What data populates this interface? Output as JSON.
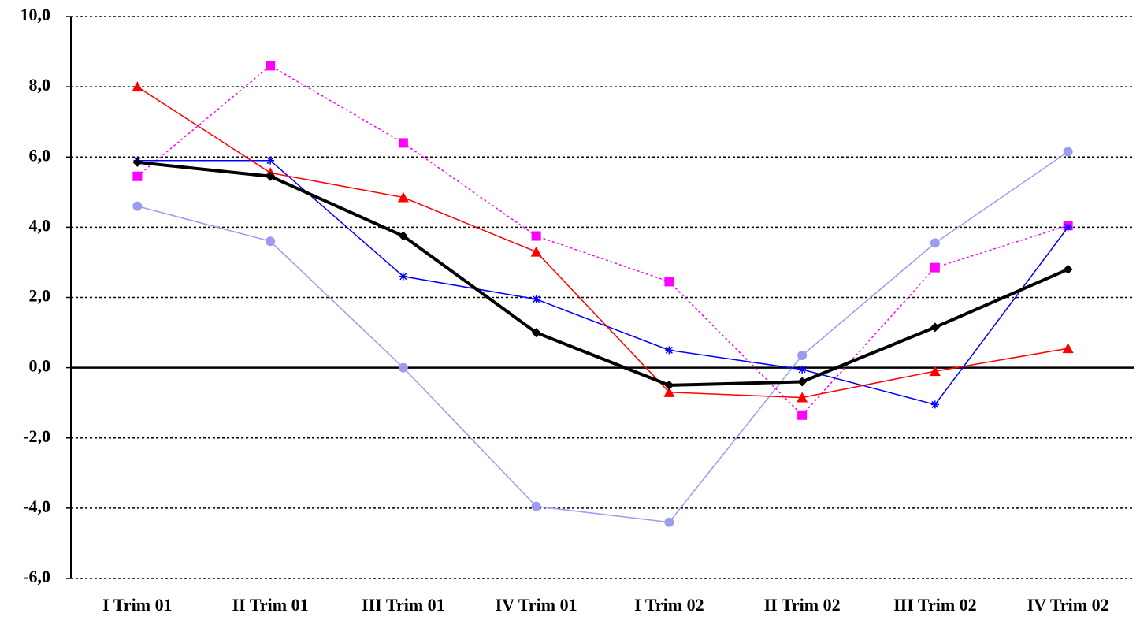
{
  "chart_data": {
    "type": "line",
    "categories": [
      "I Trim 01",
      "II Trim 01",
      "III Trim 01",
      "IV Trim 01",
      "I Trim 02",
      "II Trim 02",
      "III Trim 02",
      "IV Trim 02"
    ],
    "series": [
      {
        "color": "#9b9bf0",
        "marker": "circle",
        "values": [
          4.6,
          3.6,
          0.0,
          -3.95,
          -4.4,
          0.35,
          3.55,
          6.15
        ]
      },
      {
        "color": "#ff00ff",
        "marker": "square",
        "dash": "dotted",
        "values": [
          5.45,
          8.6,
          6.4,
          3.75,
          2.45,
          -1.35,
          2.85,
          4.05
        ]
      },
      {
        "color": "#0000ff",
        "marker": "star",
        "values": [
          5.9,
          5.9,
          2.6,
          1.95,
          0.5,
          -0.05,
          -1.05,
          4.0
        ]
      },
      {
        "color": "#ff0000",
        "marker": "triangle",
        "values": [
          8.0,
          5.55,
          4.85,
          3.3,
          -0.7,
          -0.85,
          -0.1,
          0.55
        ]
      },
      {
        "color": "#000000",
        "marker": "diamond",
        "line_width": 4,
        "values": [
          5.85,
          5.45,
          3.75,
          1.0,
          -0.5,
          -0.4,
          1.15,
          2.8
        ]
      }
    ],
    "ylim": [
      -6,
      10
    ],
    "yticks": [
      {
        "value": -6,
        "label": "-6,0"
      },
      {
        "value": -4,
        "label": "-4,0"
      },
      {
        "value": -2,
        "label": "-2,0"
      },
      {
        "value": 0,
        "label": "0,0"
      },
      {
        "value": 2,
        "label": "2,0"
      },
      {
        "value": 4,
        "label": "4,0"
      },
      {
        "value": 6,
        "label": "6,0"
      },
      {
        "value": 8,
        "label": "8,0"
      },
      {
        "value": 10,
        "label": "10,0"
      }
    ],
    "grid": true
  }
}
